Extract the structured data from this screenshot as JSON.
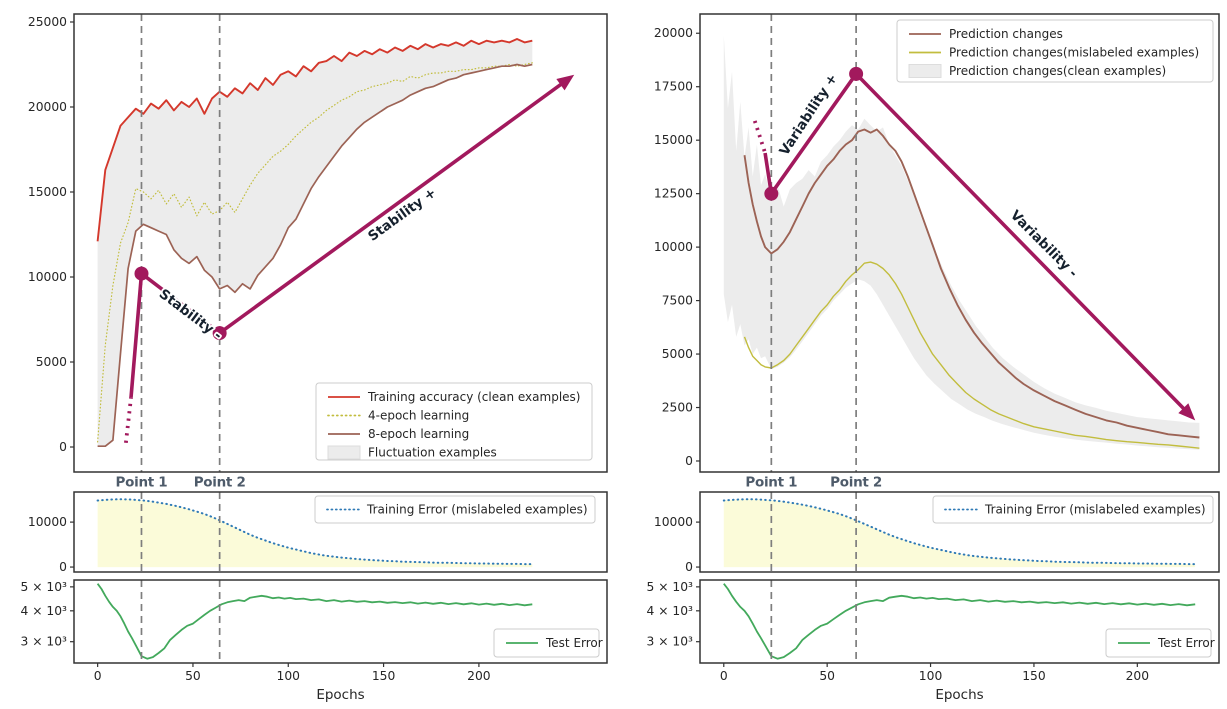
{
  "figure": {
    "xlabel": "Epochs",
    "xticks": [
      0,
      50,
      100,
      150,
      200
    ],
    "vlines": {
      "epochs": [
        23,
        64
      ],
      "labels": [
        "Point 1",
        "Point 2"
      ]
    }
  },
  "colors": {
    "red": "#d4382c",
    "olive": "#c2bd3e",
    "brown": "#9c6355",
    "band": "#ececec",
    "magenta": "#a2195d",
    "blue": "#2f7ab6",
    "green": "#43a95c",
    "fill_yellow": "#fafad2",
    "vline": "#7e7e7e",
    "spine": "#333333",
    "tick_text": "#262626",
    "point_label": "#4e5b6a",
    "annot_text": "#15202d"
  },
  "chart_data": [
    {
      "id": "stability",
      "type": "line",
      "ylim": [
        -1470,
        25470
      ],
      "yticks": [
        0,
        5000,
        10000,
        15000,
        20000,
        25000
      ],
      "x": [
        0,
        4,
        8,
        12,
        16,
        20,
        24,
        28,
        32,
        36,
        40,
        44,
        48,
        52,
        56,
        60,
        64,
        68,
        72,
        76,
        80,
        84,
        88,
        92,
        96,
        100,
        104,
        108,
        112,
        116,
        120,
        124,
        128,
        132,
        136,
        140,
        144,
        148,
        152,
        156,
        160,
        164,
        168,
        172,
        176,
        180,
        184,
        188,
        192,
        196,
        200,
        204,
        208,
        212,
        216,
        220,
        224,
        228
      ],
      "series": [
        {
          "name": "Training accuracy (clean examples)",
          "color": "red",
          "style": "solid",
          "lw": 1.9,
          "y": [
            12100,
            16300,
            17600,
            18900,
            19400,
            19900,
            19600,
            20200,
            19900,
            20400,
            19800,
            20300,
            20000,
            20500,
            19600,
            20500,
            20900,
            20600,
            21100,
            20800,
            21400,
            21000,
            21700,
            21300,
            21900,
            22100,
            21800,
            22400,
            22100,
            22600,
            22700,
            23000,
            22700,
            23200,
            23000,
            23300,
            23100,
            23400,
            23200,
            23500,
            23300,
            23600,
            23400,
            23700,
            23500,
            23700,
            23600,
            23800,
            23600,
            23900,
            23700,
            23900,
            23800,
            23900,
            23800,
            24000,
            23800,
            23900
          ]
        },
        {
          "name": "4-epoch learning",
          "color": "olive",
          "style": "dotted",
          "lw": 1.2,
          "y": [
            300,
            6000,
            9500,
            12000,
            13200,
            15200,
            15000,
            14600,
            15100,
            14300,
            14900,
            14100,
            14700,
            13600,
            14400,
            13700,
            13900,
            14400,
            13800,
            14600,
            15400,
            16100,
            16600,
            17100,
            17400,
            17800,
            18300,
            18700,
            19100,
            19400,
            19800,
            20100,
            20400,
            20600,
            20900,
            21000,
            21200,
            21300,
            21400,
            21600,
            21500,
            21800,
            21700,
            21900,
            22000,
            22000,
            22100,
            22100,
            22200,
            22200,
            22300,
            22300,
            22400,
            22400,
            22500,
            22400,
            22500,
            22600
          ]
        },
        {
          "name": "8-epoch learning",
          "color": "brown",
          "style": "solid",
          "lw": 1.7,
          "y": [
            50,
            50,
            400,
            5500,
            10500,
            12700,
            13100,
            12900,
            12700,
            12500,
            11600,
            11100,
            10800,
            11200,
            10400,
            10000,
            9300,
            9500,
            9100,
            9600,
            9300,
            10100,
            10600,
            11100,
            11900,
            12900,
            13400,
            14300,
            15200,
            15900,
            16500,
            17100,
            17700,
            18200,
            18700,
            19100,
            19400,
            19700,
            20000,
            20200,
            20400,
            20700,
            20900,
            21100,
            21200,
            21400,
            21600,
            21700,
            21900,
            22000,
            22100,
            22200,
            22300,
            22400,
            22400,
            22500,
            22400,
            22500
          ]
        }
      ],
      "band": {
        "name": "Fluctuation examples",
        "between": [
          0,
          2
        ]
      },
      "annotation": {
        "dotted": [
          [
            14.8,
            250
          ],
          [
            17.5,
            2900
          ]
        ],
        "path": [
          [
            17.5,
            2900
          ],
          [
            23,
            10200
          ],
          [
            64,
            6700
          ],
          [
            250,
            21900
          ]
        ],
        "markers": [
          [
            23,
            10200
          ],
          [
            64,
            6700
          ]
        ],
        "labels": [
          {
            "text": "Stability -",
            "epoch": 47.4,
            "value": 7590,
            "rotate": 37
          },
          {
            "text": "Stability +",
            "epoch": 161,
            "value": 13470,
            "rotate": -36
          }
        ]
      }
    },
    {
      "id": "variability",
      "type": "line",
      "ylim": [
        -515,
        20900
      ],
      "yticks": [
        0,
        2500,
        5000,
        7500,
        10000,
        12500,
        15000,
        17500,
        20000
      ],
      "x": [
        10,
        12,
        14,
        16,
        18,
        20,
        23,
        26,
        29,
        32,
        35,
        38,
        41,
        44,
        47,
        50,
        53,
        56,
        59,
        62,
        65,
        68,
        71,
        74,
        77,
        80,
        83,
        86,
        89,
        92,
        95,
        98,
        101,
        105,
        109,
        113,
        117,
        121,
        125,
        129,
        133,
        137,
        141,
        145,
        150,
        155,
        160,
        165,
        170,
        175,
        180,
        185,
        190,
        195,
        200,
        205,
        210,
        215,
        220,
        225,
        230
      ],
      "series": [
        {
          "name": "Prediction changes",
          "color": "brown",
          "style": "solid",
          "lw": 1.9,
          "y": [
            14300,
            13000,
            12000,
            11200,
            10500,
            10000,
            9700,
            9900,
            10250,
            10700,
            11300,
            11900,
            12500,
            13000,
            13400,
            13800,
            14100,
            14500,
            14800,
            15000,
            15400,
            15500,
            15350,
            15500,
            15200,
            14800,
            14500,
            14000,
            13300,
            12500,
            11700,
            10900,
            10100,
            9000,
            8100,
            7300,
            6600,
            6000,
            5500,
            5050,
            4600,
            4250,
            3900,
            3600,
            3300,
            3050,
            2800,
            2600,
            2400,
            2200,
            2050,
            1900,
            1800,
            1650,
            1550,
            1450,
            1350,
            1250,
            1200,
            1150,
            1100
          ]
        },
        {
          "name": "Prediction changes(mislabeled examples)",
          "color": "olive",
          "style": "solid",
          "lw": 1.4,
          "y": [
            5800,
            5300,
            4900,
            4700,
            4500,
            4400,
            4350,
            4500,
            4700,
            5000,
            5400,
            5800,
            6200,
            6600,
            7000,
            7300,
            7700,
            8000,
            8400,
            8700,
            8950,
            9250,
            9300,
            9200,
            9000,
            8700,
            8300,
            7800,
            7200,
            6600,
            6000,
            5500,
            5000,
            4500,
            4000,
            3600,
            3200,
            2900,
            2650,
            2400,
            2200,
            2050,
            1900,
            1750,
            1600,
            1500,
            1400,
            1300,
            1200,
            1150,
            1080,
            1000,
            950,
            900,
            870,
            820,
            780,
            750,
            700,
            650,
            600
          ]
        }
      ],
      "band": {
        "name": "Prediction changes(clean examples)",
        "x": [
          0,
          2,
          4,
          6,
          8,
          10,
          12,
          14,
          16,
          18,
          20,
          23,
          26,
          29,
          32,
          35,
          38,
          41,
          44,
          47,
          50,
          53,
          56,
          59,
          62,
          65,
          68,
          71,
          74,
          77,
          80,
          83,
          86,
          89,
          92,
          95,
          98,
          102,
          106,
          110,
          114,
          118,
          122,
          126,
          130,
          135,
          140,
          145,
          150,
          155,
          160,
          165,
          170,
          175,
          180,
          185,
          190,
          195,
          200,
          205,
          210,
          215,
          220,
          225,
          230
        ],
        "upper": [
          19900,
          16500,
          18200,
          14500,
          16800,
          14200,
          15600,
          13300,
          14800,
          12900,
          13400,
          12300,
          12900,
          11900,
          12700,
          13000,
          13200,
          13600,
          13300,
          14000,
          14300,
          14700,
          15000,
          15400,
          15700,
          15500,
          16000,
          15700,
          15400,
          15600,
          14800,
          14300,
          13800,
          13100,
          12400,
          11500,
          10800,
          9900,
          9000,
          8200,
          7500,
          6900,
          6300,
          5800,
          5300,
          4800,
          4400,
          4050,
          3700,
          3400,
          3150,
          2950,
          2750,
          2600,
          2480,
          2350,
          2250,
          2150,
          2050,
          2000,
          1950,
          1900,
          1850,
          1800,
          1780
        ],
        "lower": [
          7800,
          6500,
          7300,
          5800,
          6400,
          5400,
          5700,
          5000,
          5300,
          4800,
          4900,
          4300,
          4400,
          4600,
          4850,
          5200,
          5600,
          6000,
          6400,
          6800,
          7100,
          7500,
          7800,
          8100,
          8300,
          8500,
          8400,
          8200,
          7800,
          7300,
          6800,
          6300,
          5800,
          5300,
          4800,
          4400,
          4000,
          3600,
          3250,
          2900,
          2650,
          2400,
          2200,
          2050,
          1880,
          1720,
          1580,
          1450,
          1320,
          1220,
          1130,
          1060,
          1000,
          950,
          900,
          860,
          810,
          770,
          720,
          680,
          640,
          610,
          580,
          550,
          520
        ]
      },
      "annotation": {
        "dotted": [
          [
            15,
            15900
          ],
          [
            20,
            14400
          ]
        ],
        "path": [
          [
            20,
            14400
          ],
          [
            23,
            12500
          ],
          [
            64,
            18100
          ],
          [
            228,
            1900
          ]
        ],
        "markers": [
          [
            23,
            12500
          ],
          [
            64,
            18100
          ]
        ],
        "labels": [
          {
            "text": "Variability +",
            "epoch": 42.7,
            "value": 16085,
            "rotate": -57
          },
          {
            "text": "Variability -",
            "epoch": 153.4,
            "value": 10005,
            "rotate": 45
          }
        ]
      }
    },
    {
      "id": "training_error",
      "type": "line",
      "ylim": [
        -1100,
        16700
      ],
      "yticks": [
        0,
        10000
      ],
      "x": [
        0,
        4,
        8,
        12,
        16,
        20,
        24,
        28,
        32,
        36,
        40,
        44,
        48,
        52,
        56,
        60,
        64,
        68,
        72,
        76,
        80,
        84,
        88,
        92,
        96,
        100,
        104,
        108,
        112,
        116,
        120,
        124,
        128,
        132,
        136,
        140,
        144,
        148,
        152,
        156,
        160,
        164,
        168,
        172,
        176,
        180,
        184,
        188,
        192,
        196,
        200,
        204,
        208,
        212,
        216,
        220,
        224,
        228
      ],
      "series": [
        {
          "name": "Training Error (mislabeled examples)",
          "color": "blue",
          "style": "dotted",
          "lw": 2,
          "fill": "fill_yellow",
          "y": [
            14800,
            14950,
            15050,
            15100,
            15050,
            14950,
            14800,
            14600,
            14350,
            14050,
            13700,
            13300,
            12850,
            12350,
            11800,
            11150,
            10400,
            9600,
            8800,
            8000,
            7200,
            6500,
            5900,
            5300,
            4800,
            4300,
            3900,
            3500,
            3100,
            2800,
            2500,
            2300,
            2100,
            1950,
            1800,
            1650,
            1550,
            1450,
            1350,
            1300,
            1200,
            1150,
            1100,
            1050,
            1000,
            950,
            950,
            900,
            850,
            850,
            800,
            800,
            750,
            750,
            700,
            700,
            650,
            650
          ]
        }
      ]
    },
    {
      "id": "test_error",
      "type": "line",
      "yscale": "log",
      "ylim": [
        2460,
        5330
      ],
      "yticks_log": [
        {
          "v": 3000,
          "label": "3 × 10³"
        },
        {
          "v": 4000,
          "label": "4 × 10³"
        },
        {
          "v": 5000,
          "label": "5 × 10³"
        }
      ],
      "x": [
        0,
        2,
        4,
        6,
        8,
        10,
        12,
        14,
        16,
        18,
        20,
        23,
        26,
        29,
        32,
        35,
        38,
        41,
        44,
        47,
        50,
        53,
        56,
        59,
        62,
        65,
        68,
        71,
        74,
        77,
        80,
        83,
        86,
        89,
        92,
        95,
        98,
        101,
        104,
        108,
        112,
        116,
        120,
        124,
        128,
        132,
        136,
        140,
        144,
        148,
        152,
        156,
        160,
        164,
        168,
        172,
        176,
        180,
        184,
        188,
        192,
        196,
        200,
        204,
        208,
        212,
        216,
        220,
        224,
        228
      ],
      "series": [
        {
          "name": "Test Error",
          "color": "green",
          "style": "solid",
          "lw": 1.8,
          "y": [
            5150,
            4900,
            4600,
            4350,
            4150,
            4000,
            3800,
            3550,
            3300,
            3100,
            2900,
            2620,
            2560,
            2600,
            2700,
            2820,
            3050,
            3200,
            3350,
            3480,
            3550,
            3700,
            3850,
            4000,
            4120,
            4250,
            4330,
            4380,
            4420,
            4380,
            4520,
            4560,
            4600,
            4560,
            4500,
            4530,
            4480,
            4510,
            4460,
            4480,
            4420,
            4450,
            4380,
            4420,
            4360,
            4400,
            4350,
            4380,
            4330,
            4360,
            4310,
            4340,
            4300,
            4330,
            4280,
            4320,
            4270,
            4310,
            4260,
            4300,
            4250,
            4290,
            4240,
            4280,
            4230,
            4270,
            4220,
            4260,
            4210,
            4250
          ]
        }
      ]
    }
  ]
}
